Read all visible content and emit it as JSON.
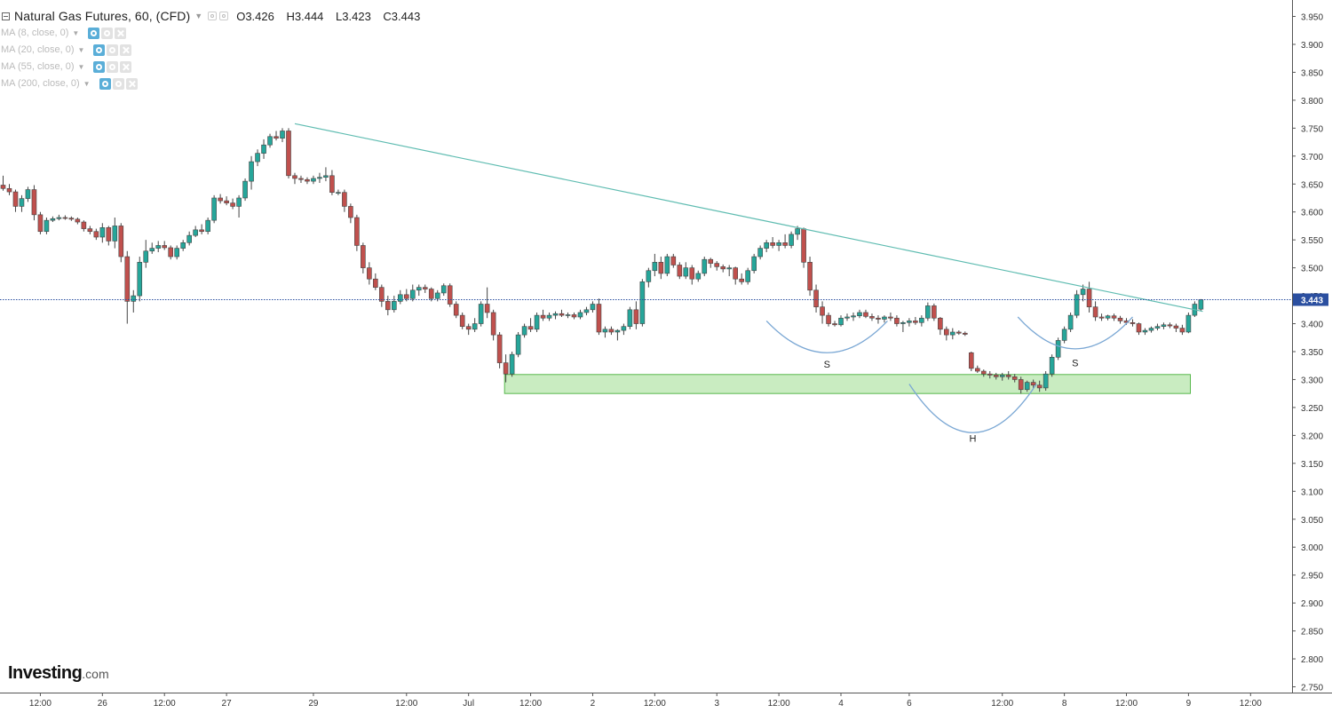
{
  "header": {
    "title": "Natural Gas Futures, 60, (CFD)",
    "open": "O3.426",
    "high": "H3.444",
    "low": "L3.423",
    "close": "C3.443"
  },
  "indicators": [
    {
      "label": "MA (8, close, 0)"
    },
    {
      "label": "MA (20, close, 0)"
    },
    {
      "label": "MA (55, close, 0)"
    },
    {
      "label": "MA (200, close, 0)"
    }
  ],
  "logo": {
    "brand": "Investing",
    "suffix": ".com"
  },
  "chart_data": {
    "type": "candlestick",
    "symbol": "Natural Gas Futures",
    "interval": "60",
    "ylim": [
      2.73,
      3.97
    ],
    "y_axis_side": "right",
    "y_ticks": [
      "3.950",
      "3.900",
      "3.850",
      "3.800",
      "3.750",
      "3.700",
      "3.650",
      "3.600",
      "3.550",
      "3.500",
      "3.450",
      "3.400",
      "3.350",
      "3.300",
      "3.250",
      "3.200",
      "3.150",
      "3.100",
      "3.050",
      "3.000",
      "2.950",
      "2.900",
      "2.850",
      "2.800",
      "2.750"
    ],
    "x_ticks": [
      {
        "label": "12:00",
        "slot": 6
      },
      {
        "label": "26",
        "slot": 16
      },
      {
        "label": "12:00",
        "slot": 26
      },
      {
        "label": "27",
        "slot": 36
      },
      {
        "label": "29",
        "slot": 50
      },
      {
        "label": "12:00",
        "slot": 65
      },
      {
        "label": "Jul",
        "slot": 75
      },
      {
        "label": "12:00",
        "slot": 85
      },
      {
        "label": "2",
        "slot": 95
      },
      {
        "label": "12:00",
        "slot": 105
      },
      {
        "label": "3",
        "slot": 115
      },
      {
        "label": "12:00",
        "slot": 125
      },
      {
        "label": "4",
        "slot": 135
      },
      {
        "label": "6",
        "slot": 146
      },
      {
        "label": "12:00",
        "slot": 161
      },
      {
        "label": "8",
        "slot": 171
      },
      {
        "label": "12:00",
        "slot": 181
      },
      {
        "label": "9",
        "slot": 191
      },
      {
        "label": "12:00",
        "slot": 201
      }
    ],
    "last_price": "3.443",
    "colors": {
      "up": "#26a69a",
      "down": "#c0504d",
      "trendline": "#5fbcb1",
      "support_fill": "#c9ecc1",
      "support_border": "#58b84c",
      "pattern_arc": "#7aa7d4"
    },
    "candles": [
      [
        3.648,
        3.665,
        3.638,
        3.642
      ],
      [
        3.642,
        3.65,
        3.63,
        3.636
      ],
      [
        3.636,
        3.64,
        3.6,
        3.61
      ],
      [
        3.61,
        3.63,
        3.6,
        3.624
      ],
      [
        3.624,
        3.645,
        3.618,
        3.64
      ],
      [
        3.64,
        3.648,
        3.585,
        3.595
      ],
      [
        3.595,
        3.6,
        3.56,
        3.565
      ],
      [
        3.565,
        3.59,
        3.56,
        3.585
      ],
      [
        3.585,
        3.592,
        3.582,
        3.588
      ],
      [
        3.588,
        3.595,
        3.585,
        3.59
      ],
      [
        3.59,
        3.594,
        3.586,
        3.589
      ],
      [
        3.589,
        3.592,
        3.584,
        3.587
      ],
      [
        3.587,
        3.59,
        3.578,
        3.582
      ],
      [
        3.582,
        3.585,
        3.565,
        3.57
      ],
      [
        3.57,
        3.575,
        3.56,
        3.565
      ],
      [
        3.565,
        3.57,
        3.55,
        3.555
      ],
      [
        3.555,
        3.58,
        3.545,
        3.572
      ],
      [
        3.572,
        3.575,
        3.54,
        3.548
      ],
      [
        3.548,
        3.59,
        3.535,
        3.575
      ],
      [
        3.575,
        3.58,
        3.51,
        3.52
      ],
      [
        3.52,
        3.53,
        3.4,
        3.44
      ],
      [
        3.44,
        3.46,
        3.42,
        3.45
      ],
      [
        3.45,
        3.52,
        3.44,
        3.51
      ],
      [
        3.51,
        3.55,
        3.5,
        3.53
      ],
      [
        3.53,
        3.545,
        3.525,
        3.535
      ],
      [
        3.535,
        3.548,
        3.528,
        3.54
      ],
      [
        3.54,
        3.548,
        3.532,
        3.536
      ],
      [
        3.536,
        3.54,
        3.515,
        3.52
      ],
      [
        3.52,
        3.54,
        3.515,
        3.535
      ],
      [
        3.535,
        3.55,
        3.53,
        3.545
      ],
      [
        3.545,
        3.565,
        3.54,
        3.558
      ],
      [
        3.558,
        3.575,
        3.555,
        3.568
      ],
      [
        3.568,
        3.578,
        3.56,
        3.565
      ],
      [
        3.565,
        3.59,
        3.56,
        3.585
      ],
      [
        3.585,
        3.63,
        3.58,
        3.625
      ],
      [
        3.625,
        3.632,
        3.615,
        3.62
      ],
      [
        3.62,
        3.628,
        3.612,
        3.616
      ],
      [
        3.616,
        3.624,
        3.605,
        3.61
      ],
      [
        3.61,
        3.63,
        3.59,
        3.625
      ],
      [
        3.625,
        3.66,
        3.62,
        3.655
      ],
      [
        3.655,
        3.7,
        3.64,
        3.69
      ],
      [
        3.69,
        3.712,
        3.682,
        3.705
      ],
      [
        3.705,
        3.73,
        3.695,
        3.72
      ],
      [
        3.72,
        3.74,
        3.715,
        3.735
      ],
      [
        3.735,
        3.745,
        3.728,
        3.732
      ],
      [
        3.732,
        3.75,
        3.725,
        3.745
      ],
      [
        3.745,
        3.75,
        3.66,
        3.665
      ],
      [
        3.665,
        3.67,
        3.65,
        3.66
      ],
      [
        3.66,
        3.665,
        3.652,
        3.658
      ],
      [
        3.658,
        3.662,
        3.65,
        3.655
      ],
      [
        3.655,
        3.665,
        3.65,
        3.66
      ],
      [
        3.66,
        3.67,
        3.652,
        3.662
      ],
      [
        3.662,
        3.68,
        3.655,
        3.665
      ],
      [
        3.665,
        3.675,
        3.63,
        3.635
      ],
      [
        3.635,
        3.64,
        3.63,
        3.635
      ],
      [
        3.635,
        3.64,
        3.6,
        3.61
      ],
      [
        3.61,
        3.615,
        3.58,
        3.59
      ],
      [
        3.59,
        3.595,
        3.53,
        3.54
      ],
      [
        3.54,
        3.545,
        3.49,
        3.5
      ],
      [
        3.5,
        3.51,
        3.47,
        3.48
      ],
      [
        3.48,
        3.49,
        3.46,
        3.465
      ],
      [
        3.465,
        3.47,
        3.43,
        3.44
      ],
      [
        3.44,
        3.45,
        3.415,
        3.425
      ],
      [
        3.425,
        3.45,
        3.42,
        3.44
      ],
      [
        3.44,
        3.46,
        3.435,
        3.452
      ],
      [
        3.452,
        3.462,
        3.44,
        3.445
      ],
      [
        3.445,
        3.47,
        3.44,
        3.46
      ],
      [
        3.46,
        3.47,
        3.45,
        3.465
      ],
      [
        3.465,
        3.47,
        3.455,
        3.462
      ],
      [
        3.462,
        3.465,
        3.44,
        3.445
      ],
      [
        3.445,
        3.46,
        3.44,
        3.455
      ],
      [
        3.455,
        3.472,
        3.45,
        3.468
      ],
      [
        3.468,
        3.472,
        3.43,
        3.435
      ],
      [
        3.435,
        3.44,
        3.41,
        3.415
      ],
      [
        3.415,
        3.42,
        3.39,
        3.395
      ],
      [
        3.395,
        3.4,
        3.38,
        3.39
      ],
      [
        3.39,
        3.41,
        3.385,
        3.4
      ],
      [
        3.4,
        3.44,
        3.395,
        3.435
      ],
      [
        3.435,
        3.465,
        3.41,
        3.42
      ],
      [
        3.42,
        3.425,
        3.37,
        3.38
      ],
      [
        3.38,
        3.385,
        3.32,
        3.33
      ],
      [
        3.33,
        3.345,
        3.295,
        3.31
      ],
      [
        3.31,
        3.35,
        3.305,
        3.345
      ],
      [
        3.345,
        3.385,
        3.34,
        3.38
      ],
      [
        3.38,
        3.4,
        3.375,
        3.395
      ],
      [
        3.395,
        3.41,
        3.385,
        3.39
      ],
      [
        3.39,
        3.42,
        3.385,
        3.415
      ],
      [
        3.415,
        3.425,
        3.405,
        3.41
      ],
      [
        3.41,
        3.42,
        3.405,
        3.415
      ],
      [
        3.415,
        3.422,
        3.408,
        3.418
      ],
      [
        3.418,
        3.425,
        3.412,
        3.415
      ],
      [
        3.415,
        3.42,
        3.41,
        3.416
      ],
      [
        3.416,
        3.42,
        3.408,
        3.412
      ],
      [
        3.412,
        3.425,
        3.408,
        3.42
      ],
      [
        3.42,
        3.43,
        3.415,
        3.425
      ],
      [
        3.425,
        3.44,
        3.42,
        3.435
      ],
      [
        3.435,
        3.445,
        3.38,
        3.385
      ],
      [
        3.385,
        3.395,
        3.375,
        3.39
      ],
      [
        3.39,
        3.395,
        3.38,
        3.385
      ],
      [
        3.385,
        3.39,
        3.37,
        3.388
      ],
      [
        3.388,
        3.4,
        3.38,
        3.395
      ],
      [
        3.395,
        3.43,
        3.39,
        3.425
      ],
      [
        3.425,
        3.44,
        3.39,
        3.4
      ],
      [
        3.4,
        3.48,
        3.395,
        3.475
      ],
      [
        3.475,
        3.5,
        3.465,
        3.495
      ],
      [
        3.495,
        3.525,
        3.485,
        3.51
      ],
      [
        3.51,
        3.52,
        3.48,
        3.49
      ],
      [
        3.49,
        3.525,
        3.485,
        3.52
      ],
      [
        3.52,
        3.525,
        3.5,
        3.505
      ],
      [
        3.505,
        3.51,
        3.48,
        3.485
      ],
      [
        3.485,
        3.51,
        3.48,
        3.5
      ],
      [
        3.5,
        3.505,
        3.47,
        3.48
      ],
      [
        3.48,
        3.495,
        3.475,
        3.49
      ],
      [
        3.49,
        3.52,
        3.485,
        3.515
      ],
      [
        3.515,
        3.518,
        3.5,
        3.508
      ],
      [
        3.508,
        3.512,
        3.495,
        3.502
      ],
      [
        3.502,
        3.506,
        3.492,
        3.498
      ],
      [
        3.498,
        3.505,
        3.485,
        3.5
      ],
      [
        3.5,
        3.502,
        3.47,
        3.48
      ],
      [
        3.48,
        3.49,
        3.47,
        3.475
      ],
      [
        3.475,
        3.5,
        3.47,
        3.495
      ],
      [
        3.495,
        3.525,
        3.49,
        3.52
      ],
      [
        3.52,
        3.54,
        3.515,
        3.535
      ],
      [
        3.535,
        3.55,
        3.528,
        3.545
      ],
      [
        3.545,
        3.555,
        3.535,
        3.54
      ],
      [
        3.54,
        3.55,
        3.53,
        3.545
      ],
      [
        3.545,
        3.56,
        3.535,
        3.54
      ],
      [
        3.54,
        3.565,
        3.535,
        3.56
      ],
      [
        3.56,
        3.575,
        3.55,
        3.57
      ],
      [
        3.57,
        3.572,
        3.5,
        3.51
      ],
      [
        3.51,
        3.52,
        3.45,
        3.46
      ],
      [
        3.46,
        3.47,
        3.42,
        3.43
      ],
      [
        3.43,
        3.44,
        3.4,
        3.415
      ],
      [
        3.415,
        3.42,
        3.395,
        3.4
      ],
      [
        3.4,
        3.405,
        3.395,
        3.398
      ],
      [
        3.398,
        3.415,
        3.395,
        3.41
      ],
      [
        3.41,
        3.418,
        3.405,
        3.412
      ],
      [
        3.412,
        3.42,
        3.405,
        3.414
      ],
      [
        3.414,
        3.425,
        3.41,
        3.42
      ],
      [
        3.42,
        3.425,
        3.41,
        3.413
      ],
      [
        3.413,
        3.418,
        3.405,
        3.41
      ],
      [
        3.41,
        3.415,
        3.4,
        3.408
      ],
      [
        3.408,
        3.415,
        3.402,
        3.412
      ],
      [
        3.412,
        3.42,
        3.405,
        3.41
      ],
      [
        3.41,
        3.415,
        3.395,
        3.4
      ],
      [
        3.4,
        3.405,
        3.385,
        3.402
      ],
      [
        3.402,
        3.41,
        3.395,
        3.405
      ],
      [
        3.405,
        3.412,
        3.398,
        3.402
      ],
      [
        3.402,
        3.415,
        3.395,
        3.41
      ],
      [
        3.41,
        3.438,
        3.405,
        3.432
      ],
      [
        3.432,
        3.436,
        3.405,
        3.41
      ],
      [
        3.41,
        3.412,
        3.38,
        3.39
      ],
      [
        3.39,
        3.395,
        3.37,
        3.38
      ],
      [
        3.38,
        3.392,
        3.372,
        3.385
      ],
      [
        3.385,
        3.388,
        3.38,
        3.383
      ],
      [
        3.383,
        3.386,
        3.378,
        3.381
      ],
      [
        3.348,
        3.35,
        3.315,
        3.32
      ],
      [
        3.32,
        3.325,
        3.312,
        3.315
      ],
      [
        3.315,
        3.318,
        3.305,
        3.31
      ],
      [
        3.31,
        3.315,
        3.302,
        3.308
      ],
      [
        3.308,
        3.312,
        3.3,
        3.305
      ],
      [
        3.305,
        3.312,
        3.298,
        3.308
      ],
      [
        3.308,
        3.315,
        3.3,
        3.305
      ],
      [
        3.305,
        3.31,
        3.295,
        3.3
      ],
      [
        3.3,
        3.305,
        3.275,
        3.282
      ],
      [
        3.282,
        3.298,
        3.278,
        3.295
      ],
      [
        3.295,
        3.3,
        3.285,
        3.29
      ],
      [
        3.29,
        3.298,
        3.278,
        3.285
      ],
      [
        3.285,
        3.315,
        3.28,
        3.31
      ],
      [
        3.31,
        3.345,
        3.305,
        3.34
      ],
      [
        3.34,
        3.375,
        3.335,
        3.37
      ],
      [
        3.37,
        3.395,
        3.365,
        3.39
      ],
      [
        3.39,
        3.42,
        3.385,
        3.415
      ],
      [
        3.415,
        3.46,
        3.41,
        3.452
      ],
      [
        3.452,
        3.47,
        3.44,
        3.462
      ],
      [
        3.462,
        3.475,
        3.42,
        3.43
      ],
      [
        3.43,
        3.44,
        3.405,
        3.412
      ],
      [
        3.412,
        3.418,
        3.405,
        3.41
      ],
      [
        3.41,
        3.416,
        3.406,
        3.414
      ],
      [
        3.414,
        3.418,
        3.405,
        3.41
      ],
      [
        3.41,
        3.414,
        3.4,
        3.405
      ],
      [
        3.405,
        3.41,
        3.398,
        3.402
      ],
      [
        3.402,
        3.408,
        3.395,
        3.4
      ],
      [
        3.4,
        3.402,
        3.38,
        3.385
      ],
      [
        3.385,
        3.392,
        3.38,
        3.388
      ],
      [
        3.388,
        3.395,
        3.384,
        3.392
      ],
      [
        3.392,
        3.4,
        3.388,
        3.395
      ],
      [
        3.395,
        3.402,
        3.39,
        3.398
      ],
      [
        3.398,
        3.402,
        3.392,
        3.396
      ],
      [
        3.396,
        3.4,
        3.385,
        3.392
      ],
      [
        3.392,
        3.398,
        3.38,
        3.385
      ],
      [
        3.385,
        3.42,
        3.383,
        3.415
      ],
      [
        3.415,
        3.44,
        3.412,
        3.435
      ],
      [
        3.426,
        3.444,
        3.423,
        3.443
      ]
    ],
    "trendline": {
      "from": {
        "slot": 47,
        "price": 3.758
      },
      "to": {
        "slot": 193.3,
        "price": 3.422
      }
    },
    "support_zone": {
      "from_slot": 80.8,
      "to_slot": 191.3,
      "top": 3.309,
      "bottom": 3.275
    },
    "patterns": [
      {
        "label": "S",
        "from_slot": 123,
        "to_slot": 142.5,
        "edge_price": 3.405,
        "bottom_price": 3.348,
        "label_price": 3.328
      },
      {
        "label": "H",
        "from_slot": 146,
        "to_slot": 166.5,
        "edge_price": 3.292,
        "bottom_price": 3.205,
        "label_price": 3.195
      },
      {
        "label": "S",
        "from_slot": 163.5,
        "to_slot": 182,
        "edge_price": 3.412,
        "bottom_price": 3.355,
        "label_price": 3.33
      }
    ]
  }
}
